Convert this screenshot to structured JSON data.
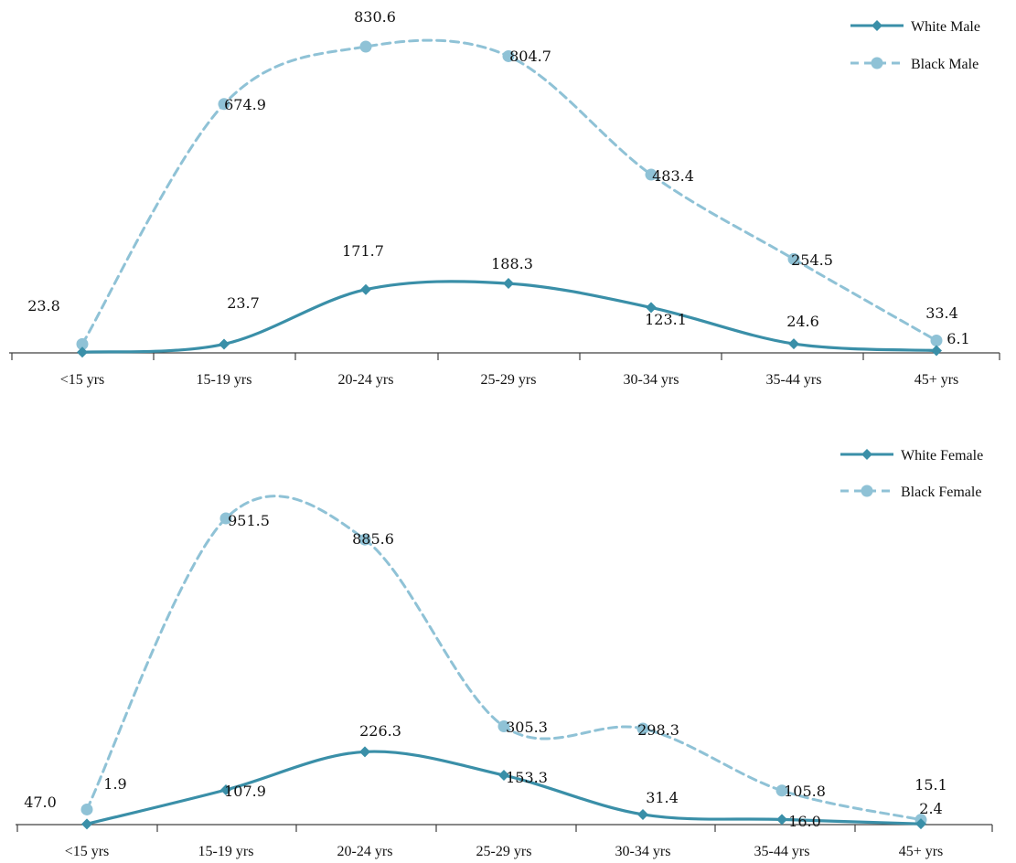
{
  "colors": {
    "white_series": "#3a8fa8",
    "black_series": "#8fc2d6",
    "axis": "#404040"
  },
  "chart_data": [
    {
      "type": "line",
      "categories": [
        "<15 yrs",
        "15-19 yrs",
        "20-24 yrs",
        "25-29 yrs",
        "30-34 yrs",
        "35-44 yrs",
        "45+ yrs"
      ],
      "series": [
        {
          "name": "White Male",
          "style": "solid",
          "marker": "diamond",
          "values": [
            1.8,
            23.7,
            171.7,
            188.3,
            123.1,
            24.6,
            6.1
          ],
          "labels": [
            "",
            "23.7",
            "171.7",
            "188.3",
            "123.1",
            "24.6",
            "6.1"
          ]
        },
        {
          "name": "Black Male",
          "style": "dashed",
          "marker": "circle",
          "values": [
            23.8,
            674.9,
            830.6,
            804.7,
            483.4,
            254.5,
            33.4
          ],
          "labels": [
            "23.8",
            "674.9",
            "830.6",
            "804.7",
            "483.4",
            "254.5",
            "33.4"
          ]
        }
      ],
      "legend": "top-right",
      "grid": false
    },
    {
      "type": "line",
      "categories": [
        "<15 yrs",
        "15-19 yrs",
        "20-24 yrs",
        "25-29 yrs",
        "30-34 yrs",
        "35-44 yrs",
        "45+ yrs"
      ],
      "series": [
        {
          "name": "White Female",
          "style": "solid",
          "marker": "diamond",
          "values": [
            1.9,
            107.9,
            226.3,
            153.3,
            31.4,
            16.0,
            2.4
          ],
          "labels": [
            "1.9",
            "107.9",
            "226.3",
            "153.3",
            "31.4",
            "16.0",
            "2.4"
          ]
        },
        {
          "name": "Black Female",
          "style": "dashed",
          "marker": "circle",
          "values": [
            47.0,
            951.5,
            885.6,
            305.3,
            298.3,
            105.8,
            15.1
          ],
          "labels": [
            "47.0",
            "951.5",
            "885.6",
            "305.3",
            "298.3",
            "105.8",
            "15.1"
          ]
        }
      ],
      "legend": "top-right",
      "grid": false
    }
  ]
}
